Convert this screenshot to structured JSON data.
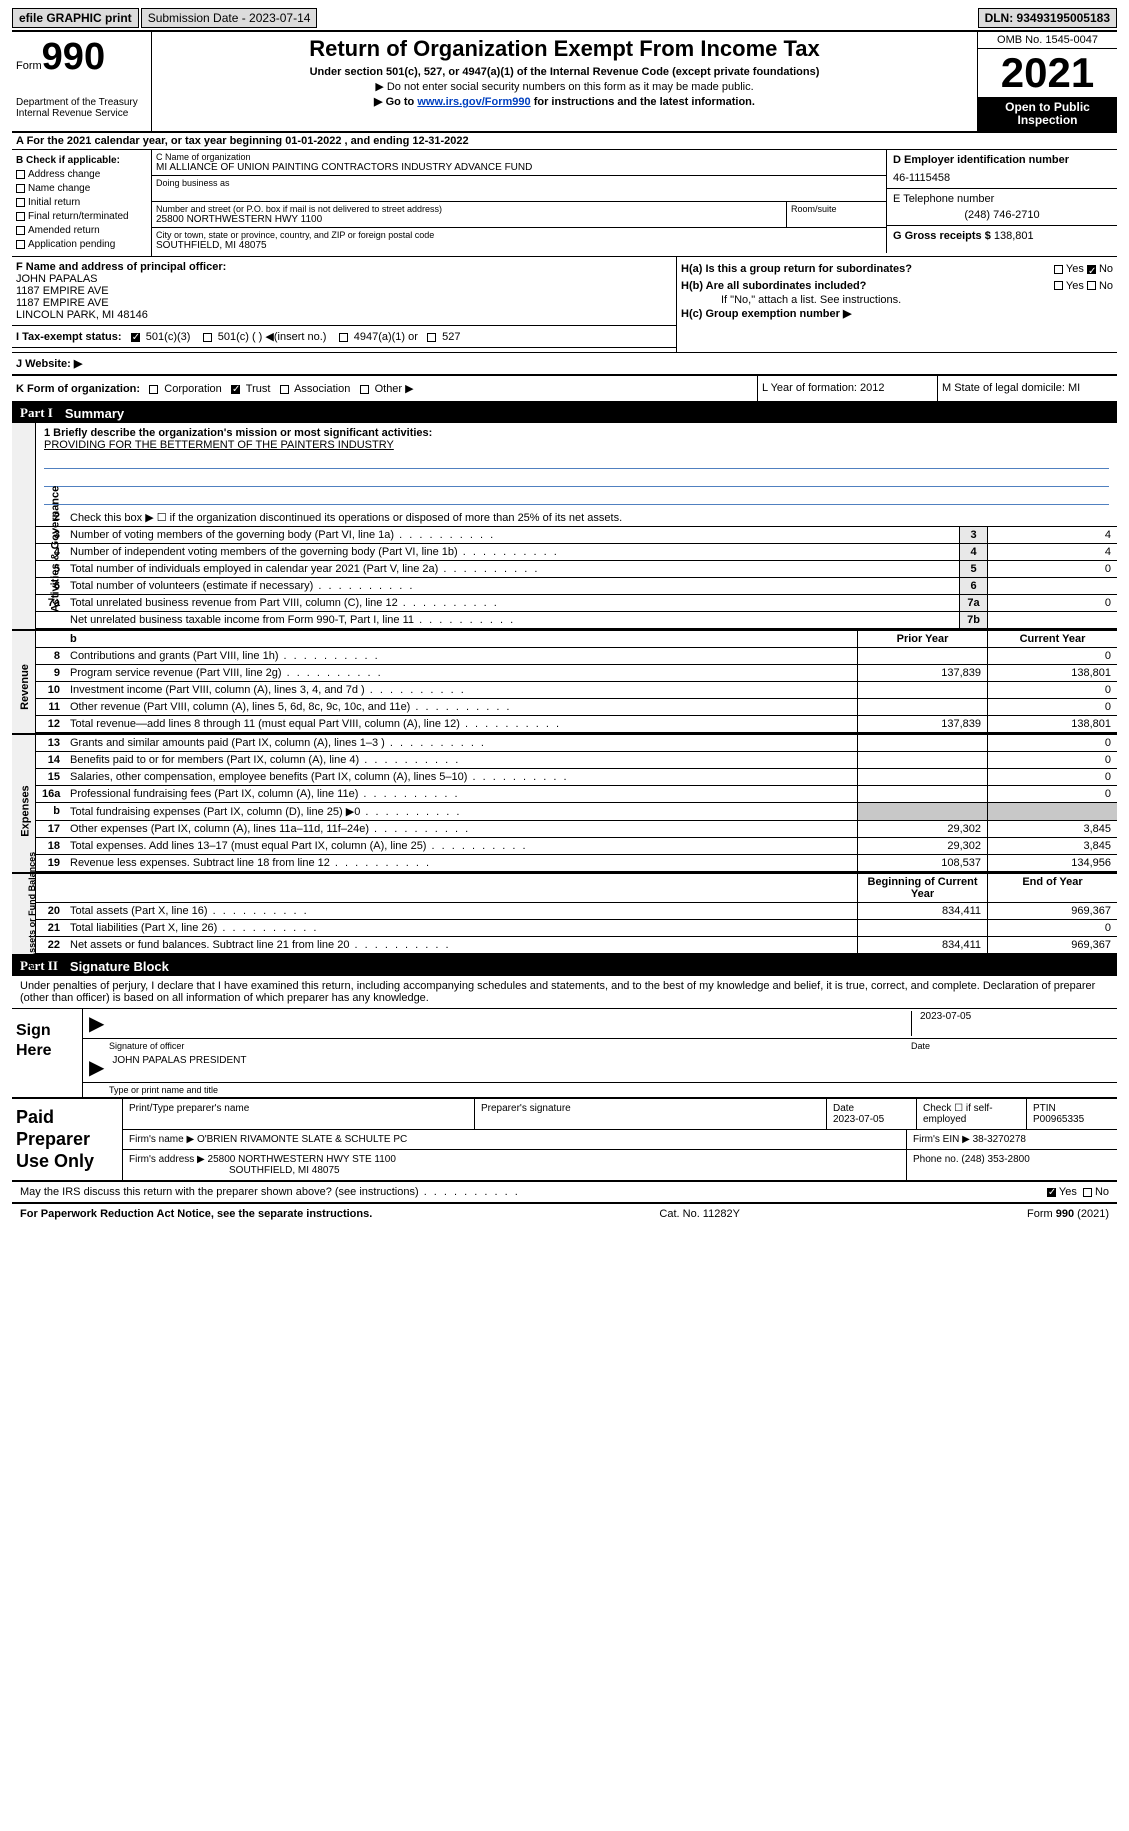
{
  "topbar": {
    "efile": "efile GRAPHIC print",
    "subdate_label": "Submission Date - 2023-07-14",
    "dln": "DLN: 93493195005183"
  },
  "header": {
    "form_label": "Form",
    "form_num": "990",
    "dept": "Department of the Treasury\nInternal Revenue Service",
    "title": "Return of Organization Exempt From Income Tax",
    "sub1": "Under section 501(c), 527, or 4947(a)(1) of the Internal Revenue Code (except private foundations)",
    "sub2": "▶ Do not enter social security numbers on this form as it may be made public.",
    "sub3_pre": "▶ Go to ",
    "sub3_link": "www.irs.gov/Form990",
    "sub3_post": " for instructions and the latest information.",
    "omb": "OMB No. 1545-0047",
    "year": "2021",
    "opi": "Open to Public Inspection"
  },
  "row_a": "A For the 2021 calendar year, or tax year beginning 01-01-2022    , and ending 12-31-2022",
  "sec_b": {
    "header": "B Check if applicable:",
    "opts": [
      "Address change",
      "Name change",
      "Initial return",
      "Final return/terminated",
      "Amended return",
      "Application pending"
    ],
    "c_label": "C Name of organization",
    "c_name": "MI ALLIANCE OF UNION PAINTING CONTRACTORS INDUSTRY ADVANCE FUND",
    "dba": "Doing business as",
    "street_label": "Number and street (or P.O. box if mail is not delivered to street address)",
    "street": "25800 NORTHWESTERN HWY 1100",
    "room": "Room/suite",
    "city_label": "City or town, state or province, country, and ZIP or foreign postal code",
    "city": "SOUTHFIELD, MI  48075",
    "d_label": "D Employer identification number",
    "d_val": "46-1115458",
    "e_label": "E Telephone number",
    "e_val": "(248) 746-2710",
    "g_label": "G Gross receipts $",
    "g_val": "138,801"
  },
  "sec_f": {
    "label": "F Name and address of principal officer:",
    "name": "JOHN PAPALAS",
    "addr1": "1187 EMPIRE AVE",
    "addr2": "1187 EMPIRE AVE",
    "addr3": "LINCOLN PARK, MI  48146",
    "ha": "H(a)  Is this a group return for subordinates?",
    "hb": "H(b)  Are all subordinates included?",
    "hb_note": "If \"No,\" attach a list. See instructions.",
    "hc": "H(c)  Group exemption number ▶"
  },
  "sec_i": {
    "label": "I   Tax-exempt status:",
    "opts": [
      "501(c)(3)",
      "501(c) (  ) ◀(insert no.)",
      "4947(a)(1) or",
      "527"
    ]
  },
  "sec_j": "J  Website: ▶",
  "sec_k": {
    "k": "K Form of organization:",
    "opts": [
      "Corporation",
      "Trust",
      "Association",
      "Other ▶"
    ],
    "l": "L Year of formation: 2012",
    "m": "M State of legal domicile: MI"
  },
  "part1": {
    "label": "Part I",
    "title": "Summary"
  },
  "mission": {
    "q": "1  Briefly describe the organization's mission or most significant activities:",
    "a": "PROVIDING FOR THE BETTERMENT OF THE PAINTERS INDUSTRY"
  },
  "gov": {
    "vlabel": "Activities & Governance",
    "l2": "Check this box ▶ ☐ if the organization discontinued its operations or disposed of more than 25% of its net assets.",
    "rows": [
      {
        "n": "3",
        "t": "Number of voting members of the governing body (Part VI, line 1a)",
        "b": "3",
        "v": "4"
      },
      {
        "n": "4",
        "t": "Number of independent voting members of the governing body (Part VI, line 1b)",
        "b": "4",
        "v": "4"
      },
      {
        "n": "5",
        "t": "Total number of individuals employed in calendar year 2021 (Part V, line 2a)",
        "b": "5",
        "v": "0"
      },
      {
        "n": "6",
        "t": "Total number of volunteers (estimate if necessary)",
        "b": "6",
        "v": ""
      },
      {
        "n": "7a",
        "t": "Total unrelated business revenue from Part VIII, column (C), line 12",
        "b": "7a",
        "v": "0"
      },
      {
        "n": "",
        "t": "Net unrelated business taxable income from Form 990-T, Part I, line 11",
        "b": "7b",
        "v": ""
      }
    ]
  },
  "rev": {
    "vlabel": "Revenue",
    "hdr": {
      "py": "Prior Year",
      "cy": "Current Year"
    },
    "rows": [
      {
        "n": "8",
        "t": "Contributions and grants (Part VIII, line 1h)",
        "py": "",
        "cy": "0"
      },
      {
        "n": "9",
        "t": "Program service revenue (Part VIII, line 2g)",
        "py": "137,839",
        "cy": "138,801"
      },
      {
        "n": "10",
        "t": "Investment income (Part VIII, column (A), lines 3, 4, and 7d )",
        "py": "",
        "cy": "0"
      },
      {
        "n": "11",
        "t": "Other revenue (Part VIII, column (A), lines 5, 6d, 8c, 9c, 10c, and 11e)",
        "py": "",
        "cy": "0"
      },
      {
        "n": "12",
        "t": "Total revenue—add lines 8 through 11 (must equal Part VIII, column (A), line 12)",
        "py": "137,839",
        "cy": "138,801"
      }
    ]
  },
  "exp": {
    "vlabel": "Expenses",
    "rows": [
      {
        "n": "13",
        "t": "Grants and similar amounts paid (Part IX, column (A), lines 1–3 )",
        "py": "",
        "cy": "0"
      },
      {
        "n": "14",
        "t": "Benefits paid to or for members (Part IX, column (A), line 4)",
        "py": "",
        "cy": "0"
      },
      {
        "n": "15",
        "t": "Salaries, other compensation, employee benefits (Part IX, column (A), lines 5–10)",
        "py": "",
        "cy": "0"
      },
      {
        "n": "16a",
        "t": "Professional fundraising fees (Part IX, column (A), line 11e)",
        "py": "",
        "cy": "0"
      },
      {
        "n": "b",
        "t": "Total fundraising expenses (Part IX, column (D), line 25) ▶0",
        "py": "shade",
        "cy": "shade"
      },
      {
        "n": "17",
        "t": "Other expenses (Part IX, column (A), lines 11a–11d, 11f–24e)",
        "py": "29,302",
        "cy": "3,845"
      },
      {
        "n": "18",
        "t": "Total expenses. Add lines 13–17 (must equal Part IX, column (A), line 25)",
        "py": "29,302",
        "cy": "3,845"
      },
      {
        "n": "19",
        "t": "Revenue less expenses. Subtract line 18 from line 12",
        "py": "108,537",
        "cy": "134,956"
      }
    ]
  },
  "net": {
    "vlabel": "Net Assets or Fund Balances",
    "hdr": {
      "py": "Beginning of Current Year",
      "cy": "End of Year"
    },
    "rows": [
      {
        "n": "20",
        "t": "Total assets (Part X, line 16)",
        "py": "834,411",
        "cy": "969,367"
      },
      {
        "n": "21",
        "t": "Total liabilities (Part X, line 26)",
        "py": "",
        "cy": "0"
      },
      {
        "n": "22",
        "t": "Net assets or fund balances. Subtract line 21 from line 20",
        "py": "834,411",
        "cy": "969,367"
      }
    ]
  },
  "part2": {
    "label": "Part II",
    "title": "Signature Block"
  },
  "sig": {
    "decl": "Under penalties of perjury, I declare that I have examined this return, including accompanying schedules and statements, and to the best of my knowledge and belief, it is true, correct, and complete. Declaration of preparer (other than officer) is based on all information of which preparer has any knowledge.",
    "here": "Sign Here",
    "date": "2023-07-05",
    "sig_label": "Signature of officer",
    "date_label": "Date",
    "name": "JOHN PAPALAS  PRESIDENT",
    "name_label": "Type or print name and title"
  },
  "prep": {
    "label": "Paid Preparer Use Only",
    "h1": "Print/Type preparer's name",
    "h2": "Preparer's signature",
    "h3": "Date",
    "h3v": "2023-07-05",
    "h4": "Check ☐ if self-employed",
    "h5": "PTIN",
    "h5v": "P00965335",
    "firm_label": "Firm's name     ▶",
    "firm": "O'BRIEN RIVAMONTE SLATE & SCHULTE PC",
    "ein_label": "Firm's EIN ▶",
    "ein": "38-3270278",
    "addr_label": "Firm's address ▶",
    "addr": "25800 NORTHWESTERN HWY STE 1100",
    "addr2": "SOUTHFIELD, MI  48075",
    "phone_label": "Phone no.",
    "phone": "(248) 353-2800"
  },
  "footer": {
    "q": "May the IRS discuss this return with the preparer shown above? (see instructions)",
    "pra": "For Paperwork Reduction Act Notice, see the separate instructions.",
    "cat": "Cat. No. 11282Y",
    "form": "Form 990 (2021)"
  }
}
